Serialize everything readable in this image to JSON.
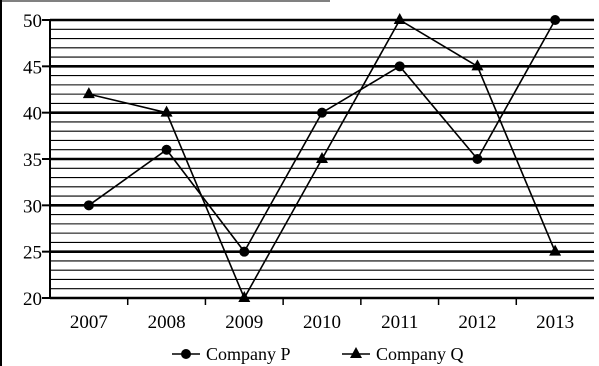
{
  "chart_data": {
    "type": "line",
    "categories": [
      "2007",
      "2008",
      "2009",
      "2010",
      "2011",
      "2012",
      "2013"
    ],
    "series": [
      {
        "name": "Company P",
        "marker": "circle",
        "values": [
          30,
          36,
          25,
          40,
          45,
          35,
          50
        ]
      },
      {
        "name": "Company Q",
        "marker": "triangle",
        "values": [
          42,
          40,
          20,
          35,
          50,
          45,
          25
        ]
      }
    ],
    "title": "",
    "xlabel": "",
    "ylabel": "",
    "ylim": [
      20,
      50
    ],
    "yticks": [
      "20",
      "25",
      "30",
      "35",
      "40",
      "45",
      "50"
    ],
    "grid": true,
    "legend_position": "bottom",
    "colors": {
      "line": "#000000",
      "grid": "#000000",
      "background": "#ffffff"
    }
  }
}
